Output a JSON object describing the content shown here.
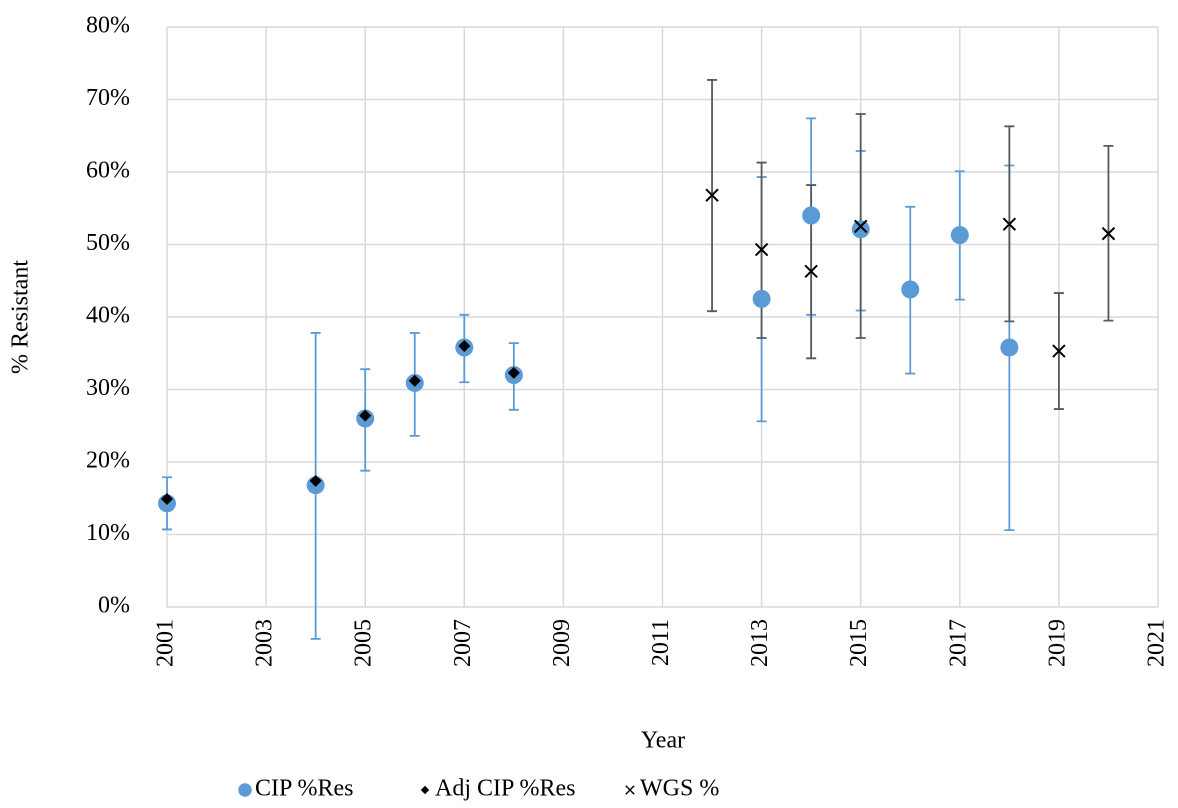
{
  "chart_data": {
    "type": "scatter",
    "x_label": "Year",
    "y_label": "% Resistant",
    "xlim": [
      2001,
      2021
    ],
    "xticks": [
      2001,
      2003,
      2005,
      2007,
      2009,
      2011,
      2013,
      2015,
      2017,
      2019,
      2021
    ],
    "ylim": [
      0,
      80
    ],
    "yticks": [
      {
        "value": 0,
        "label": "0%"
      },
      {
        "value": 10,
        "label": "10%"
      },
      {
        "value": 20,
        "label": "20%"
      },
      {
        "value": 30,
        "label": "30%"
      },
      {
        "value": 40,
        "label": "40%"
      },
      {
        "value": 50,
        "label": "50%"
      },
      {
        "value": 60,
        "label": "60%"
      },
      {
        "value": 70,
        "label": "70%"
      },
      {
        "value": 80,
        "label": "80%"
      }
    ],
    "grid": true,
    "legend": "bottom",
    "series": [
      {
        "name": "CIP %Res",
        "color": "#5b9bd5",
        "error_color": "#5b9bd5",
        "marker": "circle",
        "x": [
          2001,
          2004,
          2005,
          2006,
          2007,
          2008,
          2013,
          2014,
          2015,
          2016,
          2017,
          2018
        ],
        "values": [
          14.3,
          16.8,
          26.0,
          30.9,
          35.8,
          32.0,
          42.5,
          54.0,
          52.1,
          43.8,
          51.3,
          35.8
        ],
        "lower": [
          10.7,
          -4.4,
          18.8,
          23.6,
          31.0,
          27.2,
          25.6,
          40.3,
          40.9,
          32.2,
          42.4,
          10.6
        ],
        "upper": [
          17.9,
          37.8,
          32.8,
          37.8,
          40.3,
          36.4,
          59.3,
          67.4,
          62.9,
          55.2,
          60.1,
          60.9
        ]
      },
      {
        "name": "Adj CIP %Res",
        "color": "#000000",
        "marker": "diamond",
        "x": [
          2001,
          2004,
          2005,
          2006,
          2007,
          2008
        ],
        "values": [
          14.9,
          17.4,
          26.4,
          31.2,
          36.0,
          32.3
        ]
      },
      {
        "name": "WGS %",
        "color": "#000000",
        "error_color": "#595959",
        "marker": "cross",
        "x": [
          2012,
          2013,
          2014,
          2015,
          2018,
          2019,
          2020
        ],
        "values": [
          56.8,
          49.3,
          46.3,
          52.5,
          52.8,
          35.3,
          51.5
        ],
        "lower": [
          40.8,
          37.1,
          34.3,
          37.1,
          39.4,
          27.3,
          39.5
        ],
        "upper": [
          72.7,
          61.3,
          58.2,
          68.0,
          66.3,
          43.3,
          63.6
        ]
      }
    ]
  }
}
